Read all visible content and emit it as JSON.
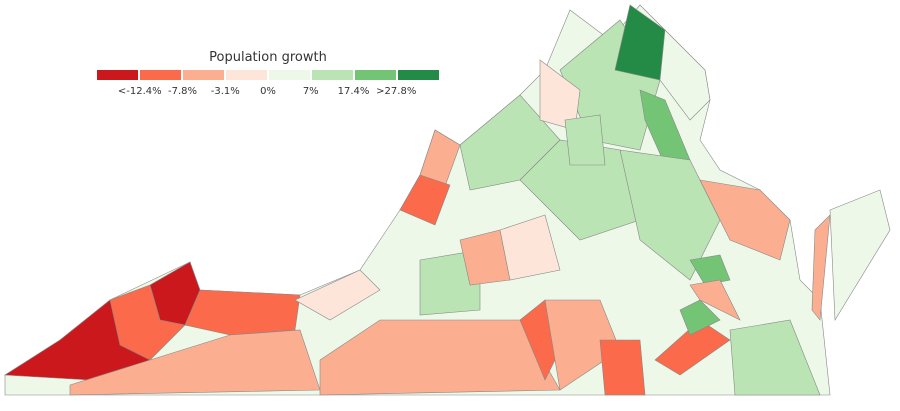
{
  "legend": {
    "title": "Population growth",
    "colors": [
      "#cb181d",
      "#fb6a4a",
      "#fcae91",
      "#fee5d9",
      "#edf8e9",
      "#bae4b3",
      "#74c476",
      "#238b45"
    ],
    "labels": [
      "<-12.4%",
      "-7.8%",
      "-3.1%",
      "0%",
      "7%",
      "17.4%",
      ">27.8%"
    ]
  }
}
